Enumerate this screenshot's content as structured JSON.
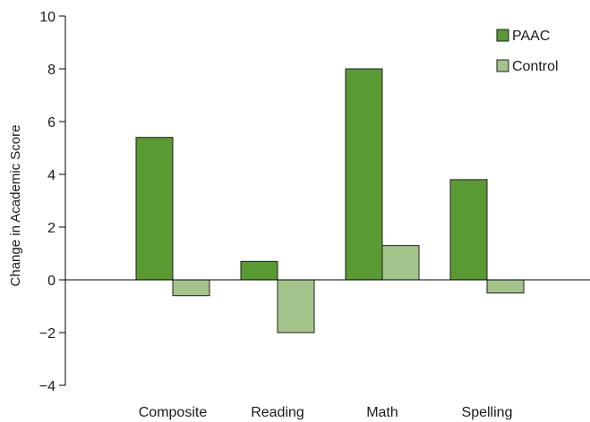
{
  "chart_data": {
    "type": "bar",
    "categories": [
      "Composite",
      "Reading",
      "Math",
      "Spelling"
    ],
    "series": [
      {
        "name": "PAAC",
        "color": "#5a9a32",
        "values": [
          5.4,
          0.7,
          8.0,
          3.8
        ]
      },
      {
        "name": "Control",
        "color": "#a3c48a",
        "values": [
          -0.6,
          -2.0,
          1.3,
          -0.5
        ]
      }
    ],
    "title": "",
    "xlabel": "",
    "ylabel": "Change in Academic Score",
    "ylim": [
      -4,
      10
    ],
    "yticks": [
      10,
      8,
      6,
      4,
      2,
      0,
      -2,
      -4
    ],
    "ytick_labels": [
      "10",
      "8",
      "6",
      "4",
      "2",
      "0",
      "−2",
      "−4"
    ],
    "grid": false,
    "legend_position": "top-right"
  }
}
